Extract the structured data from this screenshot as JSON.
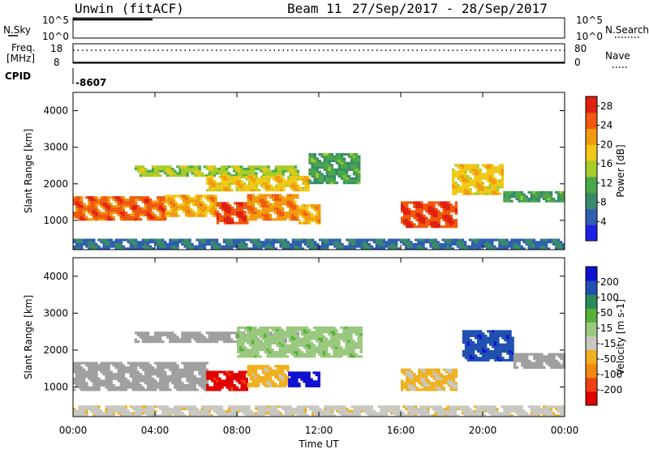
{
  "header": {
    "station": "Unwin (fitACF)",
    "beam": "Beam 11",
    "date_range": "27/Sep/2017 - 28/Sep/2017"
  },
  "status_panels": {
    "nsky_label": "N.Sky",
    "nsearch_label": "N.Search",
    "noise_ticks": [
      "10^5",
      "10^0"
    ],
    "freq_label_line1": "Freq.",
    "freq_label_line2": "[MHz]",
    "freq_ticks": [
      "18",
      "8"
    ],
    "nave_label": "Nave",
    "nave_ticks": [
      "80",
      "0"
    ],
    "cpid_label": "CPID",
    "cpid_value": "-8607"
  },
  "colors": {
    "power": [
      "#1f1fe6",
      "#2f5fb0",
      "#3a8a6a",
      "#4aa84a",
      "#a8cc2a",
      "#f0c818",
      "#f09a10",
      "#f05a10",
      "#e02010"
    ],
    "velocity": [
      "#e00000",
      "#f04010",
      "#f08a10",
      "#f0b020",
      "#c8c8c0",
      "#9ac880",
      "#58b038",
      "#2a8a5a",
      "#2050b0",
      "#1010d0"
    ],
    "ground_scatter": "#a0a0a0"
  },
  "chart_data": [
    {
      "type": "heatmap",
      "title": "Power",
      "xlabel": "Time UT",
      "ylabel": "Slant Range [km]",
      "x_ticks": [
        "00:00",
        "04:00",
        "08:00",
        "12:00",
        "16:00",
        "20:00",
        "00:00"
      ],
      "x_range_hours": [
        0,
        24
      ],
      "y_ticks": [
        1000,
        2000,
        3000,
        4000
      ],
      "y_range_km": [
        200,
        4500
      ],
      "colorbar": {
        "label": "Power [dB]",
        "ticks": [
          4,
          8,
          12,
          16,
          20,
          24,
          28
        ],
        "range": [
          0,
          30
        ]
      },
      "regions": [
        {
          "t0": 0.0,
          "t1": 4.5,
          "r0": 1000,
          "r1": 1650,
          "value": 24
        },
        {
          "t0": 4.5,
          "t1": 7.0,
          "r0": 1100,
          "r1": 1700,
          "value": 20
        },
        {
          "t0": 7.0,
          "t1": 8.5,
          "r0": 900,
          "r1": 1500,
          "value": 26
        },
        {
          "t0": 8.5,
          "t1": 11.0,
          "r0": 1000,
          "r1": 1700,
          "value": 22
        },
        {
          "t0": 11.0,
          "t1": 12.0,
          "r0": 900,
          "r1": 1400,
          "value": 20
        },
        {
          "t0": 3.0,
          "t1": 11.0,
          "r0": 2200,
          "r1": 2500,
          "value": 14
        },
        {
          "t0": 6.5,
          "t1": 11.5,
          "r0": 1800,
          "r1": 2200,
          "value": 18
        },
        {
          "t0": 11.5,
          "t1": 14.0,
          "r0": 2000,
          "r1": 2800,
          "value": 10
        },
        {
          "t0": 16.0,
          "t1": 18.7,
          "r0": 800,
          "r1": 1500,
          "value": 26
        },
        {
          "t0": 18.5,
          "t1": 21.0,
          "r0": 1700,
          "r1": 2500,
          "value": 18
        },
        {
          "t0": 21.0,
          "t1": 24.0,
          "r0": 1500,
          "r1": 1800,
          "value": 10
        },
        {
          "t0": 0.0,
          "t1": 24.0,
          "r0": 200,
          "r1": 450,
          "value": 6
        }
      ]
    },
    {
      "type": "heatmap",
      "title": "Velocity",
      "xlabel": "Time UT",
      "ylabel": "Slant Range [km]",
      "x_ticks": [
        "00:00",
        "04:00",
        "08:00",
        "12:00",
        "16:00",
        "20:00",
        "00:00"
      ],
      "x_range_hours": [
        0,
        24
      ],
      "y_ticks": [
        1000,
        2000,
        3000,
        4000
      ],
      "y_range_km": [
        200,
        4500
      ],
      "colorbar": {
        "label": "Velocity [m s-1]",
        "ticks": [
          "200",
          "100",
          "50",
          "15",
          "-15",
          "-50",
          "-100",
          "-200"
        ],
        "range": [
          -250,
          250
        ]
      },
      "regions": [
        {
          "t0": 0.0,
          "t1": 6.5,
          "r0": 900,
          "r1": 1650,
          "value": 0,
          "ground": true
        },
        {
          "t0": 6.5,
          "t1": 8.5,
          "r0": 900,
          "r1": 1400,
          "value": -220
        },
        {
          "t0": 8.5,
          "t1": 10.5,
          "r0": 1000,
          "r1": 1600,
          "value": -70
        },
        {
          "t0": 10.5,
          "t1": 12.0,
          "r0": 1000,
          "r1": 1400,
          "value": 230
        },
        {
          "t0": 3.0,
          "t1": 11.0,
          "r0": 2200,
          "r1": 2500,
          "value": 0,
          "ground": true
        },
        {
          "t0": 8.0,
          "t1": 14.0,
          "r0": 1800,
          "r1": 2600,
          "value": 30
        },
        {
          "t0": 16.0,
          "t1": 18.7,
          "r0": 900,
          "r1": 1500,
          "value": -60
        },
        {
          "t0": 19.0,
          "t1": 21.5,
          "r0": 1700,
          "r1": 2500,
          "value": 180
        },
        {
          "t0": 21.5,
          "t1": 24.0,
          "r0": 1500,
          "r1": 1900,
          "value": 0,
          "ground": true
        },
        {
          "t0": 0.0,
          "t1": 24.0,
          "r0": 200,
          "r1": 450,
          "value": -40
        }
      ]
    }
  ]
}
